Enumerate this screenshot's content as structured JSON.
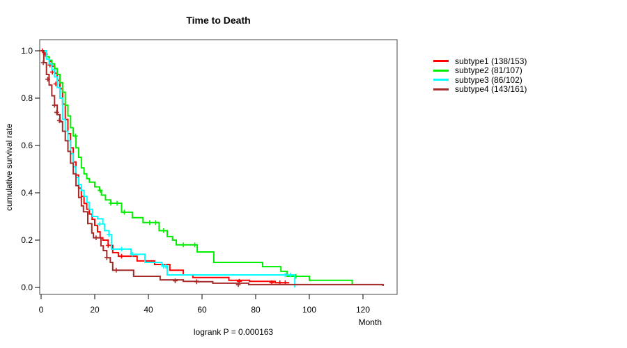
{
  "chart_data": {
    "type": "line",
    "variant": "kaplan-meier-step",
    "title": "Time to Death",
    "xlabel": "Month",
    "ylabel": "cumulative survival rate",
    "annotation": "logrank P = 0.000163",
    "xlim": [
      0,
      132
    ],
    "ylim": [
      0,
      1.0
    ],
    "grid": false,
    "legend_position": "right",
    "x_ticks": [
      0,
      20,
      40,
      60,
      80,
      100,
      120
    ],
    "y_ticks": [
      {
        "label": "1.0",
        "value": 1.0
      },
      {
        "label": "0.8",
        "value": 0.8
      },
      {
        "label": "0.6",
        "value": 0.6
      },
      {
        "label": "0.4",
        "value": 0.4
      },
      {
        "label": "0.2",
        "value": 0.2
      },
      {
        "label": "0.0",
        "value": 0.0
      }
    ],
    "series": [
      {
        "name": "subtype1",
        "label": "subtype1 (138/153)",
        "color": "#ff0000",
        "points": [
          [
            0,
            1.0
          ],
          [
            1,
            0.99
          ],
          [
            2,
            0.975
          ],
          [
            3,
            0.955
          ],
          [
            4,
            0.935
          ],
          [
            5,
            0.905
          ],
          [
            6,
            0.875
          ],
          [
            7,
            0.84
          ],
          [
            8,
            0.775
          ],
          [
            9,
            0.71
          ],
          [
            10,
            0.65
          ],
          [
            11,
            0.59
          ],
          [
            12,
            0.53
          ],
          [
            13,
            0.475
          ],
          [
            14,
            0.42
          ],
          [
            15,
            0.385
          ],
          [
            16,
            0.355
          ],
          [
            17,
            0.33
          ],
          [
            18,
            0.31
          ],
          [
            19,
            0.288
          ],
          [
            20,
            0.262
          ],
          [
            21,
            0.235
          ],
          [
            22,
            0.21
          ],
          [
            23,
            0.2
          ],
          [
            25,
            0.178
          ],
          [
            26.7,
            0.147
          ],
          [
            28.8,
            0.132
          ],
          [
            35.8,
            0.112
          ],
          [
            42.3,
            0.097
          ],
          [
            48,
            0.073
          ],
          [
            53,
            0.053
          ],
          [
            56.6,
            0.042
          ],
          [
            70,
            0.03
          ],
          [
            77.7,
            0.026
          ],
          [
            87.3,
            0.02
          ],
          [
            92.5,
            0.02
          ]
        ],
        "censors": [
          [
            0.5,
            1.0
          ],
          [
            1.6,
            0.985
          ],
          [
            3.3,
            0.94
          ],
          [
            4.2,
            0.91
          ],
          [
            5.5,
            0.86
          ],
          [
            25,
            0.178
          ],
          [
            30,
            0.132
          ],
          [
            73.9,
            0.026
          ],
          [
            86,
            0.02
          ],
          [
            89,
            0.02
          ],
          [
            91,
            0.02
          ]
        ]
      },
      {
        "name": "subtype2",
        "label": "subtype2 (81/107)",
        "color": "#00ee00",
        "points": [
          [
            0,
            1.0
          ],
          [
            2,
            0.975
          ],
          [
            3,
            0.96
          ],
          [
            4,
            0.945
          ],
          [
            5,
            0.925
          ],
          [
            6,
            0.9
          ],
          [
            7,
            0.865
          ],
          [
            8,
            0.825
          ],
          [
            9,
            0.77
          ],
          [
            10,
            0.725
          ],
          [
            11,
            0.675
          ],
          [
            12,
            0.64
          ],
          [
            13,
            0.59
          ],
          [
            14,
            0.55
          ],
          [
            15,
            0.505
          ],
          [
            16,
            0.48
          ],
          [
            17,
            0.46
          ],
          [
            18,
            0.445
          ],
          [
            20,
            0.425
          ],
          [
            21.8,
            0.41
          ],
          [
            22.5,
            0.39
          ],
          [
            24,
            0.37
          ],
          [
            26,
            0.356
          ],
          [
            30,
            0.318
          ],
          [
            34,
            0.295
          ],
          [
            38,
            0.274
          ],
          [
            44,
            0.24
          ],
          [
            47,
            0.215
          ],
          [
            49,
            0.2
          ],
          [
            50.4,
            0.18
          ],
          [
            58.2,
            0.15
          ],
          [
            64.4,
            0.106
          ],
          [
            82.6,
            0.088
          ],
          [
            89.4,
            0.068
          ],
          [
            91.7,
            0.047
          ],
          [
            100,
            0.03
          ],
          [
            116,
            0.012
          ]
        ],
        "censors": [
          [
            12.8,
            0.64
          ],
          [
            22,
            0.41
          ],
          [
            26,
            0.356
          ],
          [
            28.3,
            0.356
          ],
          [
            31,
            0.318
          ],
          [
            40.5,
            0.274
          ],
          [
            42.7,
            0.274
          ],
          [
            45.7,
            0.24
          ],
          [
            53,
            0.18
          ],
          [
            57.3,
            0.18
          ],
          [
            95,
            0.047
          ]
        ]
      },
      {
        "name": "subtype3",
        "label": "subtype3 (86/102)",
        "color": "#00ffff",
        "points": [
          [
            0,
            1.0
          ],
          [
            2,
            0.965
          ],
          [
            3,
            0.945
          ],
          [
            4,
            0.92
          ],
          [
            5,
            0.89
          ],
          [
            6,
            0.845
          ],
          [
            7,
            0.8
          ],
          [
            8,
            0.71
          ],
          [
            9,
            0.66
          ],
          [
            10,
            0.62
          ],
          [
            11,
            0.565
          ],
          [
            12,
            0.51
          ],
          [
            13,
            0.465
          ],
          [
            14,
            0.435
          ],
          [
            15,
            0.41
          ],
          [
            16,
            0.385
          ],
          [
            17.1,
            0.36
          ],
          [
            17.9,
            0.33
          ],
          [
            19.2,
            0.3
          ],
          [
            21,
            0.29
          ],
          [
            23,
            0.268
          ],
          [
            23.6,
            0.24
          ],
          [
            25.3,
            0.224
          ],
          [
            26.2,
            0.162
          ],
          [
            33.5,
            0.14
          ],
          [
            38.7,
            0.106
          ],
          [
            45,
            0.09
          ],
          [
            47,
            0.053
          ],
          [
            94.6,
            0.0
          ]
        ],
        "censors": [
          [
            21.9,
            0.268
          ],
          [
            25.3,
            0.224
          ],
          [
            30,
            0.162
          ],
          [
            34,
            0.14
          ],
          [
            45.7,
            0.09
          ],
          [
            46.5,
            0.09
          ],
          [
            91,
            0.053
          ],
          [
            93,
            0.053
          ]
        ]
      },
      {
        "name": "subtype4",
        "label": "subtype4 (143/161)",
        "color": "#a52a2a",
        "points": [
          [
            0,
            1.0
          ],
          [
            1,
            0.95
          ],
          [
            2,
            0.9
          ],
          [
            3,
            0.855
          ],
          [
            4,
            0.81
          ],
          [
            5,
            0.77
          ],
          [
            6,
            0.73
          ],
          [
            7,
            0.7
          ],
          [
            8,
            0.66
          ],
          [
            9,
            0.62
          ],
          [
            10,
            0.575
          ],
          [
            11,
            0.525
          ],
          [
            12,
            0.48
          ],
          [
            13,
            0.43
          ],
          [
            14,
            0.38
          ],
          [
            15,
            0.345
          ],
          [
            15.8,
            0.32
          ],
          [
            17.4,
            0.27
          ],
          [
            18.9,
            0.23
          ],
          [
            19.5,
            0.21
          ],
          [
            22.3,
            0.176
          ],
          [
            23.2,
            0.156
          ],
          [
            24.5,
            0.126
          ],
          [
            25.8,
            0.106
          ],
          [
            26.7,
            0.073
          ],
          [
            34.5,
            0.047
          ],
          [
            44.4,
            0.032
          ],
          [
            53,
            0.026
          ],
          [
            58.7,
            0.024
          ],
          [
            64,
            0.018
          ],
          [
            77.4,
            0.012
          ],
          [
            127.5,
            0.012
          ],
          [
            127.5,
            0.006
          ]
        ],
        "censors": [
          [
            0.8,
            0.95
          ],
          [
            2.5,
            0.88
          ],
          [
            5,
            0.77
          ],
          [
            5.8,
            0.74
          ],
          [
            6.8,
            0.705
          ],
          [
            20.5,
            0.21
          ],
          [
            24.5,
            0.126
          ],
          [
            28,
            0.073
          ],
          [
            50,
            0.028
          ],
          [
            58,
            0.024
          ],
          [
            73.5,
            0.012
          ]
        ]
      }
    ]
  },
  "style": {
    "box_color": "#444444",
    "tick_color": "#000000"
  }
}
